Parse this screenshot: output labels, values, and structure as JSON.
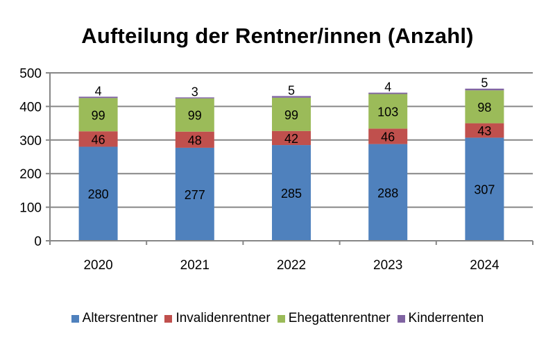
{
  "chart_data": {
    "type": "bar",
    "stacked": true,
    "title": "Aufteilung der Rentner/innen (Anzahl)",
    "categories": [
      "2020",
      "2021",
      "2022",
      "2023",
      "2024"
    ],
    "ylim": [
      0,
      500
    ],
    "yticks": [
      "0",
      "100",
      "200",
      "300",
      "400",
      "500"
    ],
    "grid": true,
    "legend_position": "bottom",
    "series": [
      {
        "name": "Altersrentner",
        "color": "#4F81BD",
        "values": [
          280,
          277,
          285,
          288,
          307
        ]
      },
      {
        "name": "Invalidenrentner",
        "color": "#C0504D",
        "values": [
          46,
          48,
          42,
          46,
          43
        ]
      },
      {
        "name": "Ehegattenrentner",
        "color": "#9BBB59",
        "values": [
          99,
          99,
          99,
          103,
          98
        ]
      },
      {
        "name": "Kinderrenten",
        "color": "#8064A2",
        "values": [
          4,
          3,
          5,
          4,
          5
        ]
      }
    ]
  }
}
